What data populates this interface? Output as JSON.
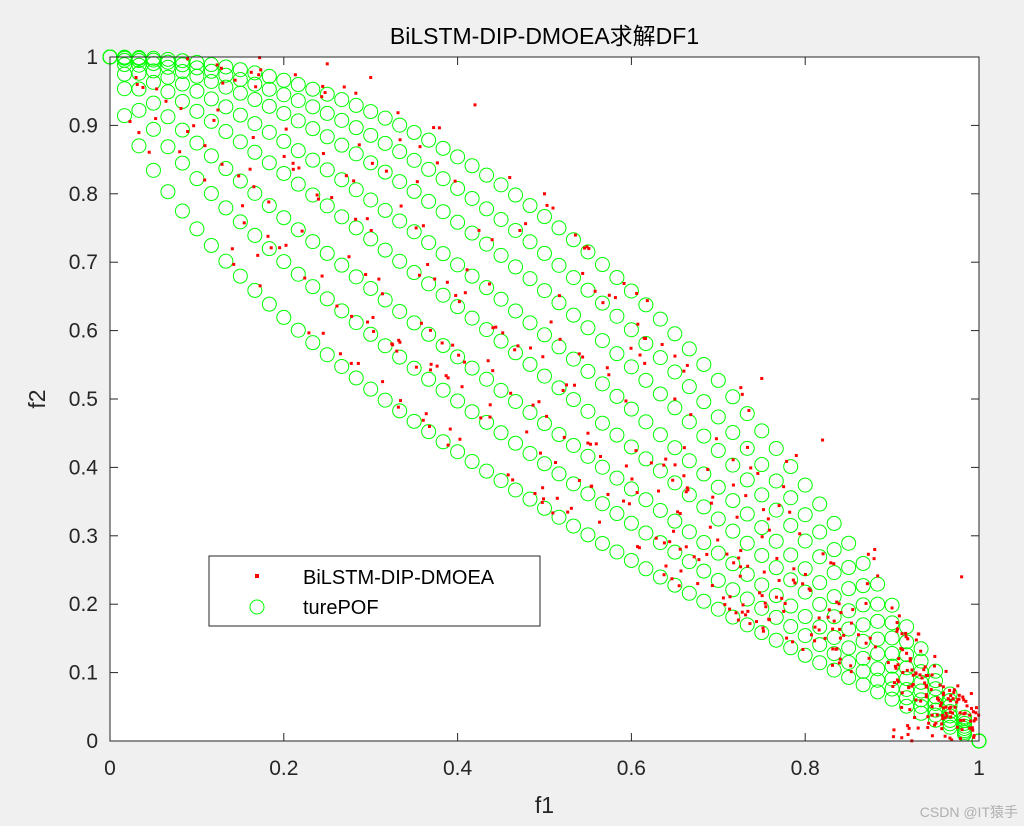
{
  "chart_data": {
    "type": "scatter",
    "title": "BiLSTM-DIP-DMOEA求解DF1",
    "xlabel": "f1",
    "ylabel": "f2",
    "xlim": [
      0,
      1
    ],
    "ylim": [
      0,
      1
    ],
    "xticks": [
      0,
      0.2,
      0.4,
      0.6,
      0.8,
      1
    ],
    "yticks": [
      0,
      0.1,
      0.2,
      0.3,
      0.4,
      0.5,
      0.6,
      0.7,
      0.8,
      0.9,
      1
    ],
    "xtick_labels": [
      "0",
      "0.2",
      "0.4",
      "0.6",
      "0.8",
      "1"
    ],
    "ytick_labels": [
      "0",
      "0.1",
      "0.2",
      "0.3",
      "0.4",
      "0.5",
      "0.6",
      "0.7",
      "0.8",
      "0.9",
      "1"
    ],
    "grid": false,
    "legend_position": "lower-left",
    "pof_family": {
      "formula": "f2 = 1 - f1^H",
      "H": [
        0.6,
        0.75,
        0.9,
        1.1,
        1.3,
        1.55,
        1.8,
        2.1
      ],
      "points_per_curve": 61
    },
    "series": [
      {
        "name": "BiLSTM-DIP-DMOEA",
        "marker": "dot",
        "color": "#ff0000",
        "samples": [
          [
            0.25,
            0.99
          ],
          [
            0.42,
            0.93
          ],
          [
            0.3,
            0.97
          ],
          [
            0.5,
            0.8
          ],
          [
            0.75,
            0.53
          ],
          [
            0.82,
            0.44
          ],
          [
            0.98,
            0.24
          ],
          [
            0.88,
            0.28
          ],
          [
            0.65,
            0.5
          ],
          [
            0.55,
            0.45
          ],
          [
            0.33,
            0.57
          ],
          [
            0.17,
            0.71
          ],
          [
            0.03,
            0.97
          ]
        ]
      },
      {
        "name": "turePOF",
        "marker": "circle",
        "color": "#00ff00",
        "samples": []
      }
    ]
  },
  "watermark": "CSDN @IT猿手"
}
